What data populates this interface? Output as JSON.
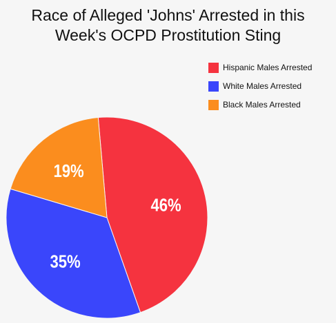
{
  "chart_data": {
    "type": "pie",
    "title_lines": [
      "Race of Alleged 'Johns' Arrested in this",
      "Week's OCPD Prostitution Sting"
    ],
    "legend_position": "top-right",
    "slices": [
      {
        "label": "Hispanic Males Arrested",
        "value": 46,
        "display": "46%",
        "color": "#f5333f"
      },
      {
        "label": "White Males Arrested",
        "value": 35,
        "display": "35%",
        "color": "#3a46fb"
      },
      {
        "label": "Black Males Arrested",
        "value": 19,
        "display": "19%",
        "color": "#fb8d1e"
      }
    ]
  }
}
